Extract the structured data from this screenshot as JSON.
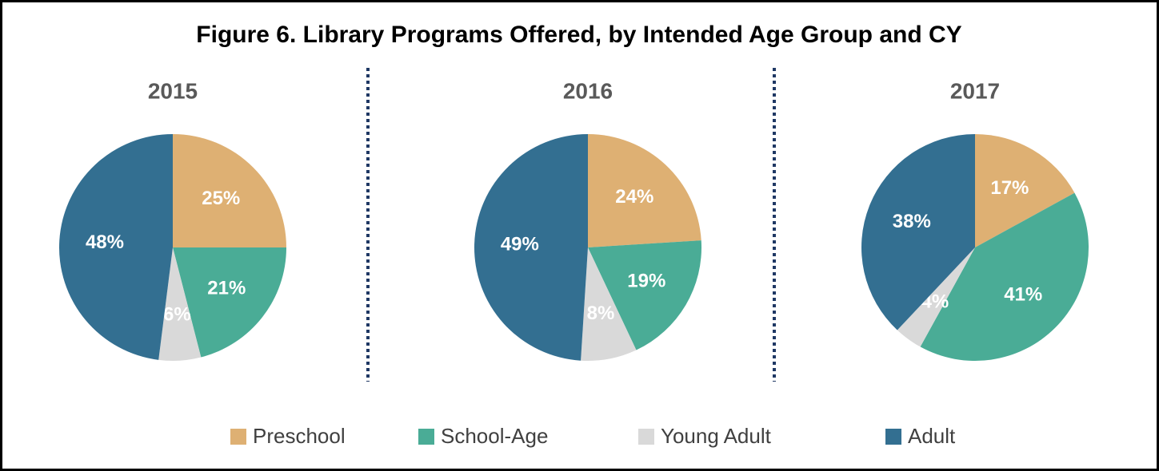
{
  "title": "Figure 6. Library Programs Offered, by Intended Age Group and CY",
  "chart_data": [
    {
      "type": "pie",
      "title": "2015",
      "categories": [
        "Preschool",
        "School-Age",
        "Young Adult",
        "Adult"
      ],
      "values": [
        25,
        21,
        6,
        48
      ],
      "value_labels": [
        "25%",
        "21%",
        "6%",
        "48%"
      ],
      "colors": [
        "#deb073",
        "#4aac96",
        "#d9d9d9",
        "#336f91"
      ]
    },
    {
      "type": "pie",
      "title": "2016",
      "categories": [
        "Preschool",
        "School-Age",
        "Young Adult",
        "Adult"
      ],
      "values": [
        24,
        19,
        8,
        49
      ],
      "value_labels": [
        "24%",
        "19%",
        "8%",
        "49%"
      ],
      "colors": [
        "#deb073",
        "#4aac96",
        "#d9d9d9",
        "#336f91"
      ]
    },
    {
      "type": "pie",
      "title": "2017",
      "categories": [
        "Preschool",
        "School-Age",
        "Young Adult",
        "Adult"
      ],
      "values": [
        17,
        41,
        4,
        38
      ],
      "value_labels": [
        "17%",
        "41%",
        "4%",
        "38%"
      ],
      "colors": [
        "#deb073",
        "#4aac96",
        "#d9d9d9",
        "#336f91"
      ]
    }
  ]
}
